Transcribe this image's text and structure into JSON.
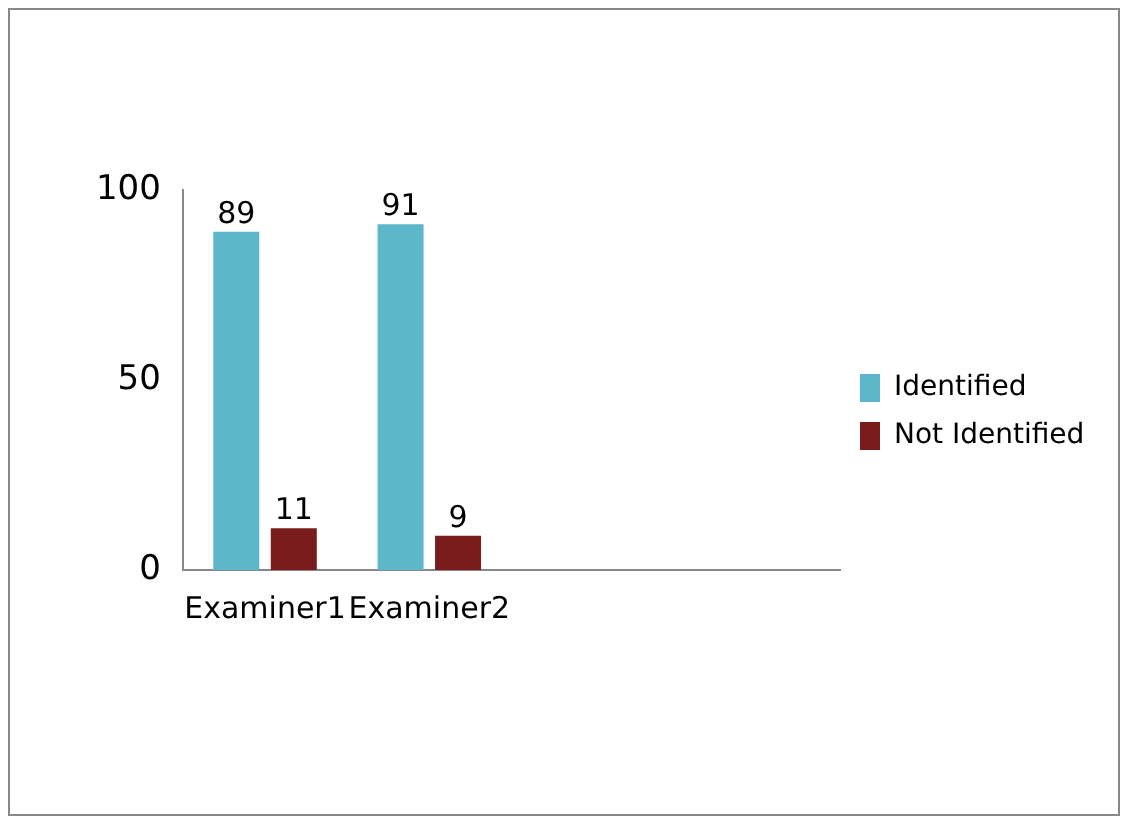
{
  "chart_data": {
    "type": "bar",
    "categories": [
      "Examiner1",
      "Examiner2",
      null,
      null
    ],
    "series": [
      {
        "name": "Identified",
        "color": "#5bb7c9",
        "values": [
          89,
          91,
          null,
          null
        ]
      },
      {
        "name": "Not Identified",
        "color": "#7a1c1c",
        "values": [
          11,
          9,
          null,
          null
        ]
      }
    ],
    "ylim": [
      0,
      100
    ],
    "yticks": [
      0,
      50,
      100
    ],
    "grid": false,
    "legend": "right",
    "data_labels": true
  }
}
